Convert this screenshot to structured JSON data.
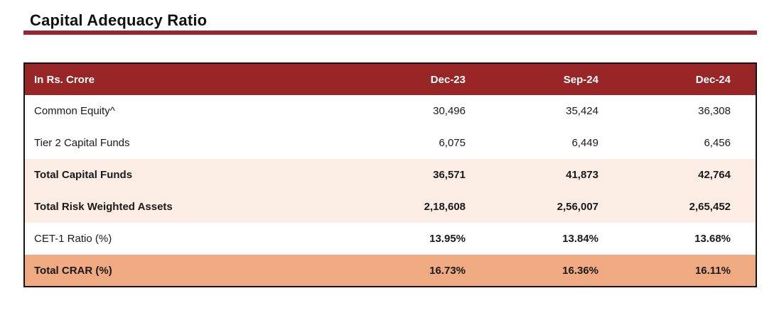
{
  "page": {
    "title": "Capital Adequacy Ratio"
  },
  "colors": {
    "header_bg": "#992626",
    "title_rule": "#9A2530",
    "subtotal_row_bg": "#FBEDE3",
    "total_row_bg": "#EFAA82",
    "table_border": "#141414",
    "header_text": "#FFFFFF"
  },
  "table": {
    "unit_label": "In Rs. Crore",
    "columns": [
      "Dec-23",
      "Sep-24",
      "Dec-24"
    ],
    "rows": [
      {
        "label": "Common Equity^",
        "values": [
          "30,496",
          "35,424",
          "36,308"
        ],
        "style": "plain"
      },
      {
        "label": "Tier 2 Capital Funds",
        "values": [
          "6,075",
          "6,449",
          "6,456"
        ],
        "style": "plain"
      },
      {
        "label": "Total Capital Funds",
        "values": [
          "36,571",
          "41,873",
          "42,764"
        ],
        "style": "subtotal"
      },
      {
        "label": "Total Risk Weighted Assets",
        "values": [
          "2,18,608",
          "2,56,007",
          "2,65,452"
        ],
        "style": "subtotal"
      },
      {
        "label": "CET-1 Ratio (%)",
        "values": [
          "13.95%",
          "13.84%",
          "13.68%"
        ],
        "style": "ratio"
      },
      {
        "label": "Total CRAR (%)",
        "values": [
          "16.73%",
          "16.36%",
          "16.11%"
        ],
        "style": "total"
      }
    ]
  }
}
